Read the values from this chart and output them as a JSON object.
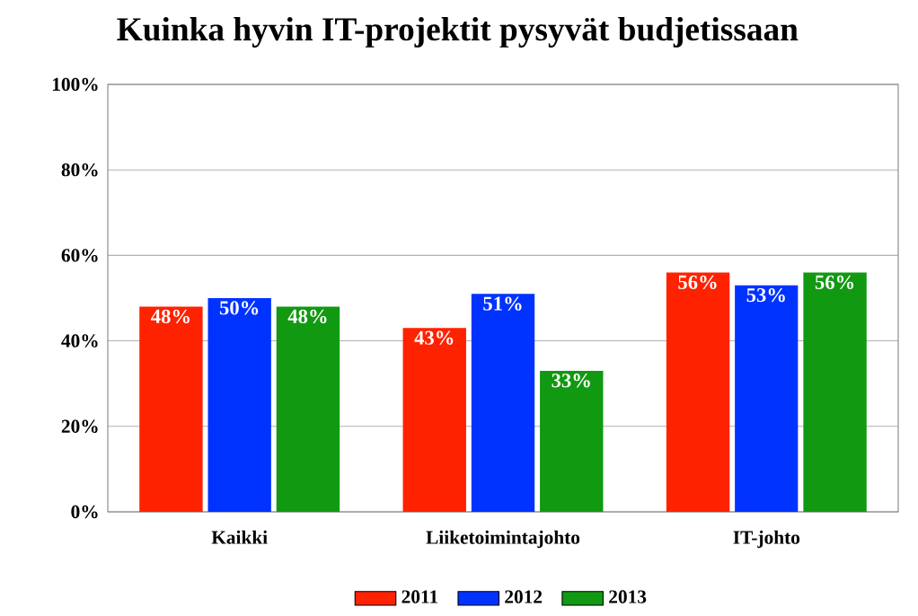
{
  "chart_data": {
    "type": "bar",
    "title": "Kuinka hyvin IT-projektit pysyvät budjetissaan",
    "categories": [
      "Kaikki",
      "Liiketoimintajohto",
      "IT-johto"
    ],
    "series": [
      {
        "name": "2011",
        "color": "#ff2200",
        "values": [
          48,
          43,
          56
        ],
        "value_labels": [
          "48%",
          "43%",
          "56%"
        ]
      },
      {
        "name": "2012",
        "color": "#0033ff",
        "values": [
          50,
          51,
          53
        ],
        "value_labels": [
          "50%",
          "51%",
          "53%"
        ]
      },
      {
        "name": "2013",
        "color": "#119911",
        "values": [
          48,
          33,
          56
        ],
        "value_labels": [
          "48%",
          "33%",
          "56%"
        ]
      }
    ],
    "ylim": [
      0,
      100
    ],
    "yticks": [
      {
        "value": 0,
        "label": "0%"
      },
      {
        "value": 20,
        "label": "20%"
      },
      {
        "value": 40,
        "label": "40%"
      },
      {
        "value": 60,
        "label": "60%"
      },
      {
        "value": 80,
        "label": "80%"
      },
      {
        "value": 100,
        "label": "100%"
      }
    ],
    "grid": "y",
    "legend": "bottom"
  }
}
